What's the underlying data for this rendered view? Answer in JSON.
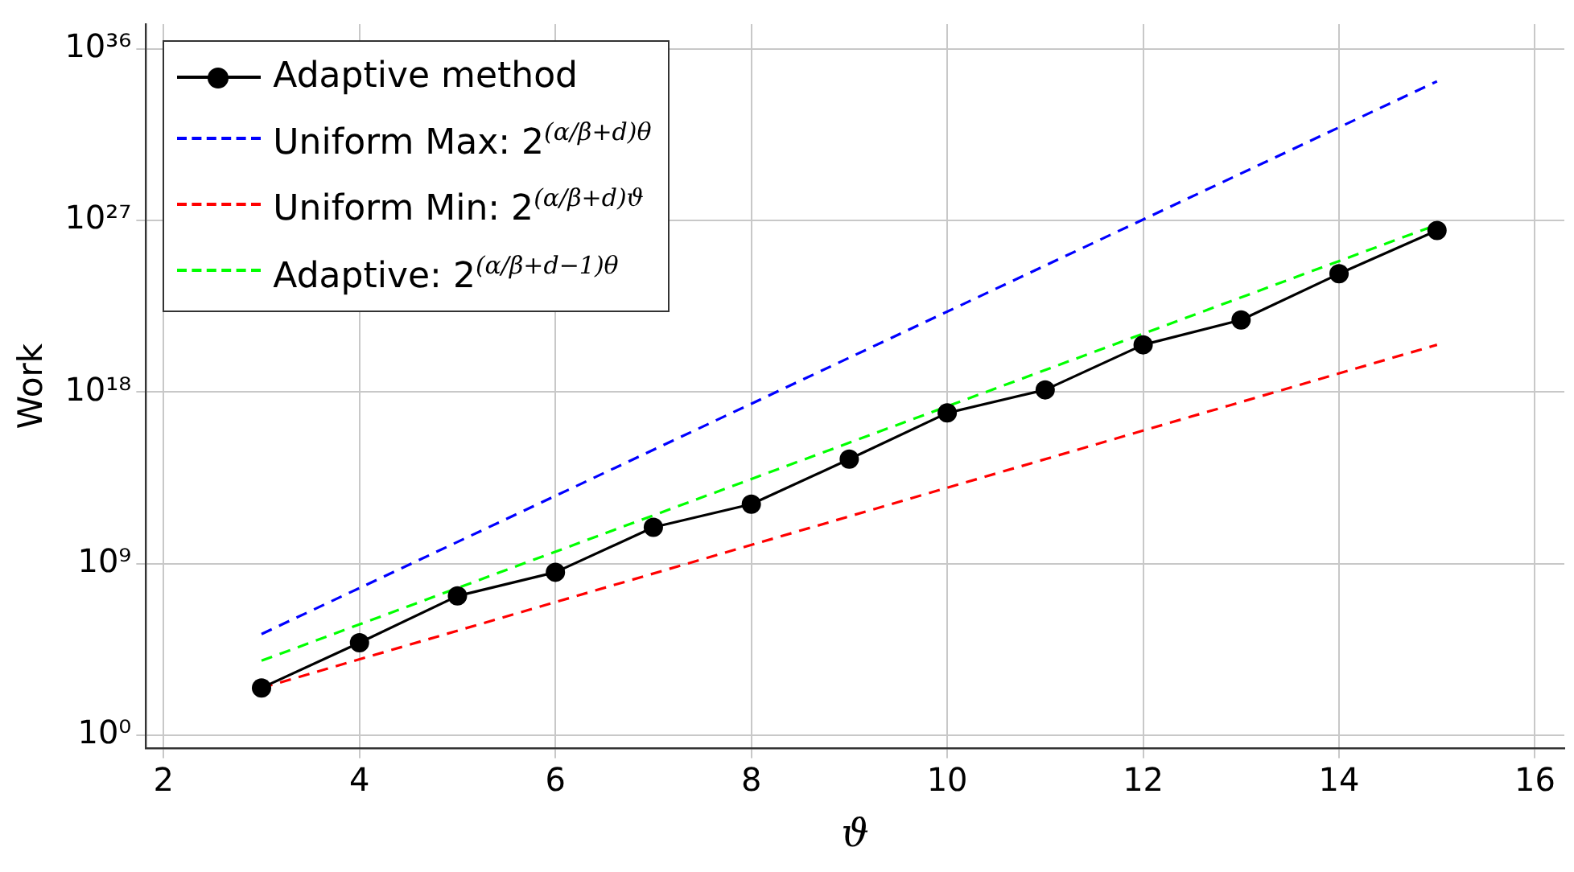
{
  "chart_data": {
    "type": "line",
    "xlabel": "ϑ",
    "ylabel": "Work",
    "log": "y",
    "grid": true,
    "legend": "top left",
    "xlim": [
      1.82,
      16.3
    ],
    "xticks": [
      2,
      4,
      6,
      8,
      10,
      12,
      14,
      16
    ],
    "ylim": [
      0.2,
      2e+37
    ],
    "yticks": [
      {
        "value": 1,
        "label": "10⁰"
      },
      {
        "value": 1000000000.0,
        "label": "10⁹"
      },
      {
        "value": 1e+18,
        "label": "10¹⁸"
      },
      {
        "value": 1e+27,
        "label": "10²⁷"
      },
      {
        "value": 1e+36,
        "label": "10³⁶"
      }
    ],
    "series": [
      {
        "name": "Adaptive method",
        "color": "#000000",
        "marker": "circle",
        "line_style": "solid",
        "x": [
          3,
          4,
          5,
          6,
          7,
          8,
          9,
          10,
          11,
          12,
          13,
          14,
          15
        ],
        "values": [
          300.0,
          70000.0,
          20000000.0,
          350000000.0,
          80000000000.0,
          1300000000000.0,
          300000000000000.0,
          8e+16,
          1.3e+18,
          3e+20,
          6e+21,
          1.6e+24,
          3e+26
        ]
      },
      {
        "name": "Uniform Max: 2$^{(α/β+d)θ}$",
        "color": "#0000ff",
        "marker": "none",
        "line_style": "dashed",
        "x": [
          3,
          15
        ],
        "values": [
          200000.0,
          2e+34
        ]
      },
      {
        "name": "Uniform Min: 2$^{(α/β+d)ϑ}$",
        "color": "#ff0000",
        "marker": "none",
        "line_style": "dashed",
        "x": [
          3,
          15
        ],
        "values": [
          300.0,
          3e+20
        ]
      },
      {
        "name": "Adaptive: 2$^{(α/β+d−1)θ}$",
        "color": "#00ff00",
        "marker": "none",
        "line_style": "dashed",
        "x": [
          3,
          15
        ],
        "values": [
          8000.0,
          6e+26
        ]
      }
    ]
  }
}
